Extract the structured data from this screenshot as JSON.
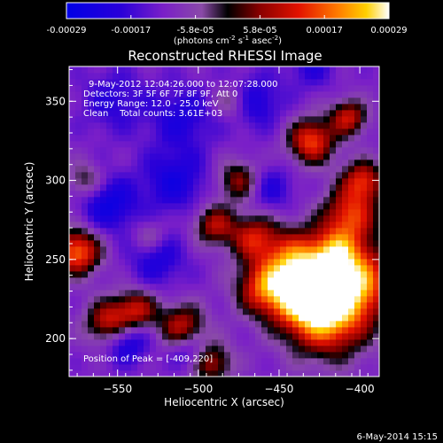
{
  "chart_data": {
    "type": "heatmap",
    "title": "Reconstructed RHESSI Image",
    "xlabel": "Heliocentric X (arcsec)",
    "ylabel": "Heliocentric Y (arcsec)",
    "xlim": [
      -580,
      -388
    ],
    "ylim": [
      176,
      372
    ],
    "x_ticks": [
      -550,
      -500,
      -450,
      -400
    ],
    "y_ticks": [
      200,
      250,
      300,
      350
    ],
    "colorbar": {
      "ticks": [
        "-0.00029",
        "-0.00017",
        "-5.8e-05",
        "5.8e-05",
        "0.00017",
        "0.00029"
      ],
      "label_pre": "(photons cm",
      "label_exp1": "-2",
      "label_mid": " s",
      "label_exp2": "-1",
      "label_post": " asec",
      "label_exp3": "-2",
      "label_end": ")",
      "range": [
        -0.00029,
        0.00029
      ]
    },
    "annotations": [
      "9-May-2012 12:04:26.000 to 12:07:28.000",
      "Detectors: 3F 5F 6F 7F 8F 9F, Att 0",
      "Energy Range: 12.0 - 25.0 keV",
      "Clean    Total counts: 3.61E+03"
    ],
    "peak_text": "Position of Peak = [-409,220]",
    "peak": [
      -409,
      220
    ],
    "blobs": [
      {
        "x": -420,
        "y": 215,
        "v": 0.00029,
        "r": 18
      },
      {
        "x": -435,
        "y": 228,
        "v": 0.00024,
        "r": 14
      },
      {
        "x": -402,
        "y": 238,
        "v": 0.00026,
        "r": 16
      },
      {
        "x": -440,
        "y": 250,
        "v": 0.00022,
        "r": 14
      },
      {
        "x": -460,
        "y": 232,
        "v": 0.00019,
        "r": 12
      },
      {
        "x": -466,
        "y": 264,
        "v": 0.00017,
        "r": 10
      },
      {
        "x": -406,
        "y": 278,
        "v": 0.00021,
        "r": 12
      },
      {
        "x": -398,
        "y": 300,
        "v": 0.00019,
        "r": 9
      },
      {
        "x": -430,
        "y": 325,
        "v": 0.00023,
        "r": 10
      },
      {
        "x": -407,
        "y": 340,
        "v": 0.00018,
        "r": 8
      },
      {
        "x": -415,
        "y": 255,
        "v": 0.00015,
        "r": 10
      },
      {
        "x": -575,
        "y": 255,
        "v": 0.00026,
        "r": 10
      },
      {
        "x": -555,
        "y": 210,
        "v": 0.00021,
        "r": 10
      },
      {
        "x": -538,
        "y": 218,
        "v": 0.00017,
        "r": 9
      },
      {
        "x": -510,
        "y": 208,
        "v": 0.00017,
        "r": 10
      },
      {
        "x": -490,
        "y": 272,
        "v": 0.00016,
        "r": 9
      },
      {
        "x": -475,
        "y": 300,
        "v": 0.00014,
        "r": 9
      },
      {
        "x": -492,
        "y": 185,
        "v": 0.00016,
        "r": 9
      },
      {
        "x": -570,
        "y": 300,
        "v": 9e-05,
        "r": 8
      },
      {
        "x": -480,
        "y": 350,
        "v": 8e-05,
        "r": 8
      },
      {
        "x": -530,
        "y": 265,
        "v": 6e-05,
        "r": 7
      },
      {
        "x": -552,
        "y": 350,
        "v": -0.00012,
        "r": 14
      },
      {
        "x": -510,
        "y": 340,
        "v": -0.00014,
        "r": 14
      },
      {
        "x": -465,
        "y": 350,
        "v": -0.00015,
        "r": 12
      },
      {
        "x": -515,
        "y": 300,
        "v": -0.00016,
        "r": 14
      },
      {
        "x": -555,
        "y": 285,
        "v": -0.00018,
        "r": 12
      },
      {
        "x": -525,
        "y": 250,
        "v": -0.00014,
        "r": 12
      },
      {
        "x": -545,
        "y": 200,
        "v": -0.0002,
        "r": 10
      },
      {
        "x": -505,
        "y": 192,
        "v": -0.00015,
        "r": 8
      },
      {
        "x": -455,
        "y": 295,
        "v": -0.00013,
        "r": 10
      },
      {
        "x": -430,
        "y": 372,
        "v": -0.00012,
        "r": 10
      }
    ]
  },
  "footer": {
    "date": "6-May-2014 15:15"
  }
}
